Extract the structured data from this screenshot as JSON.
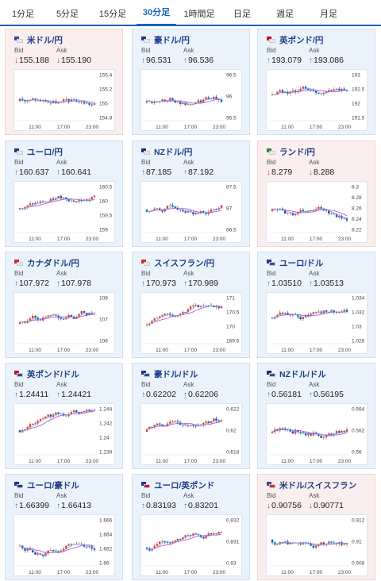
{
  "tabs": [
    {
      "label": "1分足",
      "active": false
    },
    {
      "label": "5分足",
      "active": false
    },
    {
      "label": "15分足",
      "active": false
    },
    {
      "label": "30分足",
      "active": true
    },
    {
      "label": "1時間足",
      "active": false
    },
    {
      "label": "日足",
      "active": false
    },
    {
      "label": "週足",
      "active": false
    },
    {
      "label": "月足",
      "active": false
    }
  ],
  "labels": {
    "bid": "Bid",
    "ask": "Ask"
  },
  "x_ticks": [
    "11:00",
    "17:00",
    "23:00"
  ],
  "colors": {
    "up_arrow": "#2a7fc9",
    "down_arrow": "#d9342b",
    "up_candle": "#e0403a",
    "down_candle": "#1f4fa8",
    "ma_line": "#c63fd6",
    "ma2_line": "#4cc3d9"
  },
  "pairs": [
    {
      "name": "米ドル/円",
      "bid": "155.188",
      "ask": "155.190",
      "direction": "down",
      "flags": [
        "#3c4a9b",
        "#e8e8e8"
      ],
      "y_ticks": [
        "155.4",
        "155.2",
        "155",
        "154.8"
      ]
    },
    {
      "name": "豪ドル/円",
      "bid": "96.531",
      "ask": "96.536",
      "direction": "up",
      "flags": [
        "#1d3a8a",
        "#e8e8e8"
      ],
      "y_ticks": [
        "96.5",
        "96",
        "95.5"
      ]
    },
    {
      "name": "英ポンド/円",
      "bid": "193.079",
      "ask": "193.086",
      "direction": "up",
      "flags": [
        "#c8102e",
        "#e8e8e8"
      ],
      "y_ticks": [
        "193",
        "192.5",
        "192",
        "191.5"
      ]
    },
    {
      "name": "ユーロ/円",
      "bid": "160.637",
      "ask": "160.641",
      "direction": "up",
      "flags": [
        "#1d3a8a",
        "#e8e8e8"
      ],
      "y_ticks": [
        "160.5",
        "160",
        "159.5",
        "159"
      ]
    },
    {
      "name": "NZドル/円",
      "bid": "87.185",
      "ask": "87.192",
      "direction": "up",
      "flags": [
        "#1d2a6e",
        "#e8e8e8"
      ],
      "y_ticks": [
        "87.5",
        "87",
        "86.5"
      ]
    },
    {
      "name": "ランド/円",
      "bid": "8.279",
      "ask": "8.288",
      "direction": "down",
      "flags": [
        "#2f8a3b",
        "#e8e8e8"
      ],
      "y_ticks": [
        "8.3",
        "8.28",
        "8.26",
        "8.24",
        "8.22"
      ]
    },
    {
      "name": "カナダドル/円",
      "bid": "107.972",
      "ask": "107.978",
      "direction": "up",
      "flags": [
        "#d52b1e",
        "#e8e8e8"
      ],
      "y_ticks": [
        "108",
        "107",
        "106"
      ]
    },
    {
      "name": "スイスフラン/円",
      "bid": "170.973",
      "ask": "170.989",
      "direction": "up",
      "flags": [
        "#d52b1e",
        "#e8e8e8"
      ],
      "y_ticks": [
        "171",
        "170.5",
        "170",
        "169.5"
      ]
    },
    {
      "name": "ユーロ/ドル",
      "bid": "1.03510",
      "ask": "1.03513",
      "direction": "up",
      "flags": [
        "#1d3a8a",
        "#3c4a9b"
      ],
      "y_ticks": [
        "1.034",
        "1.032",
        "1.03",
        "1.028"
      ]
    },
    {
      "name": "英ポンド/ドル",
      "bid": "1.24411",
      "ask": "1.24421",
      "direction": "up",
      "flags": [
        "#c8102e",
        "#3c4a9b"
      ],
      "y_ticks": [
        "1.244",
        "1.242",
        "1.24",
        "1.238"
      ]
    },
    {
      "name": "豪ドル/ドル",
      "bid": "0.62202",
      "ask": "0.62206",
      "direction": "up",
      "flags": [
        "#1d3a8a",
        "#3c4a9b"
      ],
      "y_ticks": [
        "0.622",
        "0.62",
        "0.618"
      ]
    },
    {
      "name": "NZドル/ドル",
      "bid": "0.56181",
      "ask": "0.56195",
      "direction": "up",
      "flags": [
        "#1d2a6e",
        "#3c4a9b"
      ],
      "y_ticks": [
        "0.564",
        "0.562",
        "0.56"
      ]
    },
    {
      "name": "ユーロ/豪ドル",
      "bid": "1.66399",
      "ask": "1.66413",
      "direction": "up",
      "flags": [
        "#1d3a8a",
        "#1d3a8a"
      ],
      "y_ticks": [
        "1.666",
        "1.664",
        "1.662",
        "1.66"
      ]
    },
    {
      "name": "ユーロ/英ポンド",
      "bid": "0.83193",
      "ask": "0.83201",
      "direction": "up",
      "flags": [
        "#1d3a8a",
        "#c8102e"
      ],
      "y_ticks": [
        "0.832",
        "0.831",
        "0.83"
      ]
    },
    {
      "name": "米ドル/スイスフラン",
      "bid": "0.90756",
      "ask": "0.90771",
      "direction": "down",
      "flags": [
        "#3c4a9b",
        "#d52b1e"
      ],
      "y_ticks": [
        "0.912",
        "0.91",
        "0.908"
      ]
    }
  ]
}
